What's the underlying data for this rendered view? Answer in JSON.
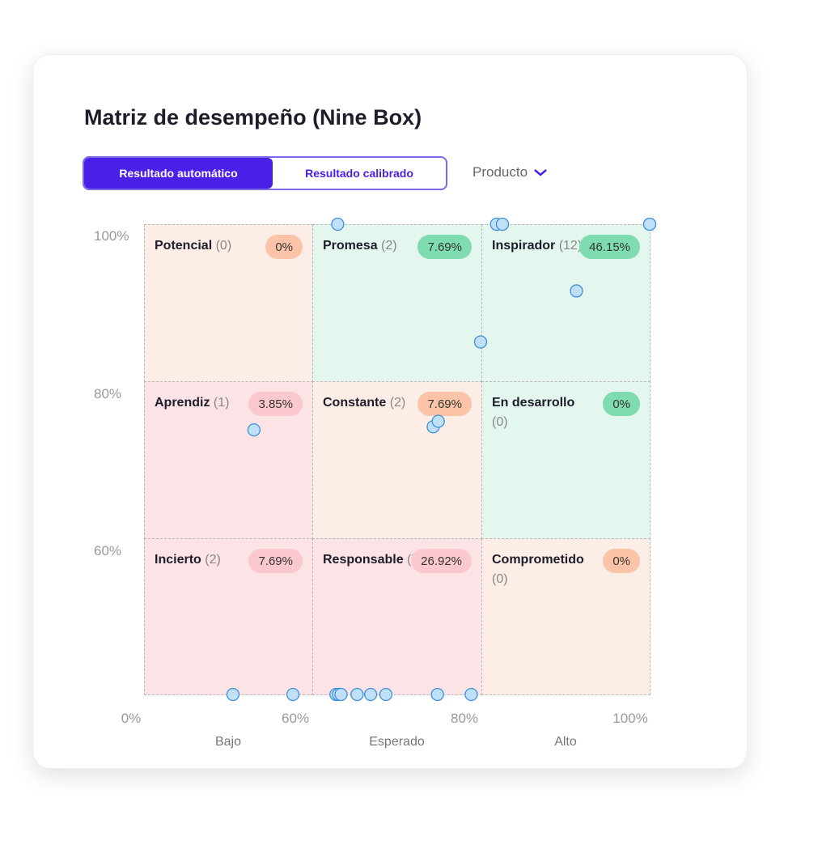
{
  "title": "Matriz de desempeño (Nine Box)",
  "toggle": {
    "automatic": "Resultado automático",
    "calibrated": "Resultado calibrado",
    "active": "automatic"
  },
  "filter": {
    "label": "Producto",
    "icon": "chevron-down-icon"
  },
  "colors": {
    "accent": "#4a1fe8",
    "green_bg": "#e4f7ee",
    "green_pill": "#7fdcb0",
    "orange_bg": "#fcede6",
    "orange_pill": "#fbc4a8",
    "pink_bg": "#fce4e6",
    "pink_pill": "#fcc8cf",
    "point": "#bfe0f7",
    "point_stroke": "#3f8fd8"
  },
  "boxes": [
    {
      "name": "Potencial",
      "count": "(0)",
      "pct": "0%",
      "tone": "orange",
      "row": 0,
      "col": 0
    },
    {
      "name": "Promesa",
      "count": "(2)",
      "pct": "7.69%",
      "tone": "green",
      "row": 0,
      "col": 1
    },
    {
      "name": "Inspirador",
      "count": "(12)",
      "pct": "46.15%",
      "tone": "green",
      "row": 0,
      "col": 2
    },
    {
      "name": "Aprendiz",
      "count": "(1)",
      "pct": "3.85%",
      "tone": "pink",
      "row": 1,
      "col": 0
    },
    {
      "name": "Constante",
      "count": "(2)",
      "pct": "7.69%",
      "tone": "orange",
      "row": 1,
      "col": 1
    },
    {
      "name": "En desarrollo",
      "count": "(0)",
      "pct": "0%",
      "tone": "green",
      "row": 1,
      "col": 2
    },
    {
      "name": "Incierto",
      "count": "(2)",
      "pct": "7.69%",
      "tone": "pink",
      "row": 2,
      "col": 0
    },
    {
      "name": "Responsable",
      "count": "(7)",
      "pct": "26.92%",
      "tone": "pink",
      "row": 2,
      "col": 1
    },
    {
      "name": "Comprometido",
      "count": "(0)",
      "pct": "0%",
      "tone": "orange",
      "row": 2,
      "col": 2
    }
  ],
  "chart_data": {
    "type": "scatter",
    "x_ticks": [
      "0%",
      "60%",
      "80%",
      "100%"
    ],
    "y_ticks": [
      "100%",
      "80%",
      "60%"
    ],
    "x_bands": [
      "Bajo",
      "Esperado",
      "Alto"
    ],
    "xlim": [
      0,
      100
    ],
    "ylim": [
      0,
      100
    ],
    "points": [
      {
        "x": 63,
        "y": 100
      },
      {
        "x": 81.8,
        "y": 100
      },
      {
        "x": 82.5,
        "y": 100
      },
      {
        "x": 100,
        "y": 100
      },
      {
        "x": 100,
        "y": 100
      },
      {
        "x": 91.3,
        "y": 91.5
      },
      {
        "x": 79.9,
        "y": 85
      },
      {
        "x": 39.2,
        "y": 73.8
      },
      {
        "x": 74.3,
        "y": 74.2
      },
      {
        "x": 74.9,
        "y": 74.9
      },
      {
        "x": 31.7,
        "y": 0
      },
      {
        "x": 53.1,
        "y": 0
      },
      {
        "x": 62.8,
        "y": 0
      },
      {
        "x": 63.1,
        "y": 0
      },
      {
        "x": 63.4,
        "y": 0
      },
      {
        "x": 65.3,
        "y": 0
      },
      {
        "x": 66.9,
        "y": 0
      },
      {
        "x": 68.7,
        "y": 0
      },
      {
        "x": 74.8,
        "y": 0
      },
      {
        "x": 78.8,
        "y": 0
      }
    ]
  }
}
